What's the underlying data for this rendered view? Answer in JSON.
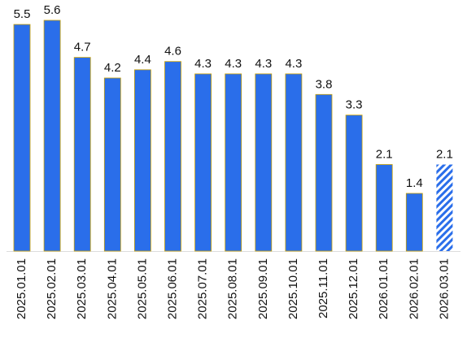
{
  "chart_data": {
    "type": "bar",
    "categories": [
      "2025.01.01",
      "2025.02.01",
      "2025.03.01",
      "2025.04.01",
      "2025.05.01",
      "2025.06.01",
      "2025.07.01",
      "2025.08.01",
      "2025.09.01",
      "2025.10.01",
      "2025.11.01",
      "2025.12.01",
      "2026.01.01",
      "2026.02.01",
      "2026.03.01"
    ],
    "values": [
      5.5,
      5.6,
      4.7,
      4.2,
      4.4,
      4.6,
      4.3,
      4.3,
      4.3,
      4.3,
      3.8,
      3.3,
      2.1,
      1.4,
      2.1
    ],
    "color": "#2a6eea",
    "styles": [
      "solid",
      "solid",
      "solid",
      "solid",
      "solid",
      "solid",
      "solid",
      "solid",
      "solid",
      "solid",
      "solid",
      "solid",
      "solid",
      "solid",
      "hatched"
    ]
  }
}
